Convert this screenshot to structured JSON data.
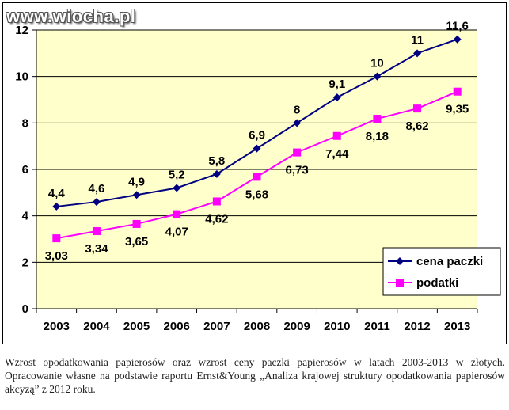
{
  "watermark": "www.wiocha.pl",
  "caption": "Wzrost opodatkowania papierosów oraz wzrost ceny paczki papierosów w latach 2003-2013 w złotych. Opracowanie własne na podstawie raportu Ernst&Young „Analiza krajowej struktury opodatkowania papierosów akcyzą” z 2012 roku.",
  "colors": {
    "plot_background": "#FFFFCC",
    "series1": "#000080",
    "series2": "#FF00FF",
    "grid": "#000000"
  },
  "chart_data": {
    "type": "line",
    "categories": [
      "2003",
      "2004",
      "2005",
      "2006",
      "2007",
      "2008",
      "2009",
      "2010",
      "2011",
      "2012",
      "2013"
    ],
    "ylim": [
      0,
      12
    ],
    "yticks": [
      "0",
      "2",
      "4",
      "6",
      "8",
      "10",
      "12"
    ],
    "grid": true,
    "legend_position": "bottom-right",
    "series": [
      {
        "name": "cena paczki",
        "color": "#000080",
        "marker": "diamond",
        "values": [
          4.4,
          4.6,
          4.9,
          5.2,
          5.8,
          6.9,
          8,
          9.1,
          10,
          11,
          11.6
        ],
        "labels": [
          "4,4",
          "4,6",
          "4,9",
          "5,2",
          "5,8",
          "6,9",
          "8",
          "9,1",
          "10",
          "11",
          "11,6"
        ]
      },
      {
        "name": "podatki",
        "color": "#FF00FF",
        "marker": "square",
        "values": [
          3.03,
          3.34,
          3.65,
          4.07,
          4.62,
          5.68,
          6.73,
          7.44,
          8.18,
          8.62,
          9.35
        ],
        "labels": [
          "3,03",
          "3,34",
          "3,65",
          "4,07",
          "4,62",
          "5,68",
          "6,73",
          "7,44",
          "8,18",
          "8,62",
          "9,35"
        ]
      }
    ]
  }
}
